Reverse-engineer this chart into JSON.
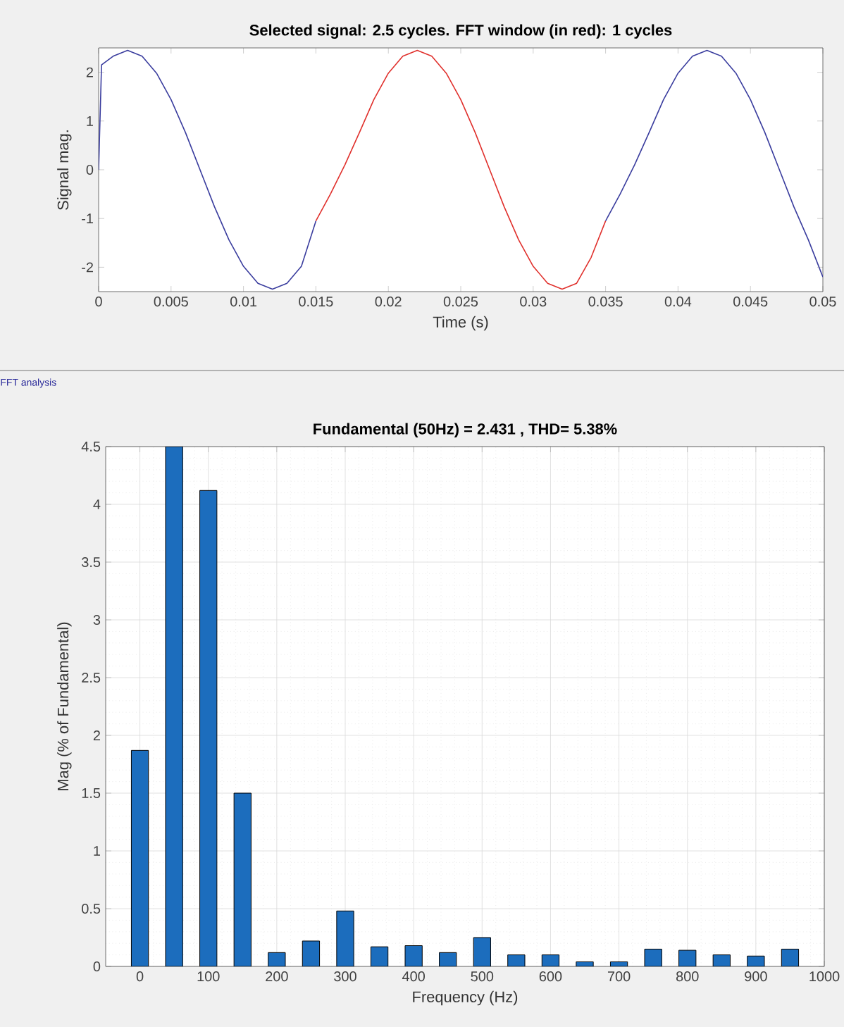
{
  "chart_data": [
    {
      "type": "line",
      "title": "Selected signal: 2.5 cycles. FFT window (in red): 1 cycles",
      "xlabel": "Time (s)",
      "ylabel": "Signal mag.",
      "xlim": [
        0,
        0.05
      ],
      "ylim": [
        -2.5,
        2.5
      ],
      "xticks": [
        0,
        0.005,
        0.01,
        0.015,
        0.02,
        0.025,
        0.03,
        0.035,
        0.04,
        0.045,
        0.05
      ],
      "yticks": [
        -2,
        -1,
        0,
        1,
        2
      ],
      "series": [
        {
          "color": "#3a3d9e",
          "x": [
            0,
            0.0002,
            0.001,
            0.002,
            0.003,
            0.004,
            0.005,
            0.006,
            0.007,
            0.008,
            0.009,
            0.01,
            0.011,
            0.012,
            0.013,
            0.014,
            0.015
          ],
          "values": [
            0,
            2.15,
            2.33,
            2.45,
            2.33,
            1.98,
            1.44,
            0.76,
            0,
            -0.76,
            -1.44,
            -1.98,
            -2.33,
            -2.45,
            -2.33,
            -1.98,
            -1.05
          ]
        },
        {
          "color": "#e0302c",
          "x": [
            0.015,
            0.016,
            0.017,
            0.018,
            0.019,
            0.02,
            0.021,
            0.022,
            0.023,
            0.024,
            0.025,
            0.026,
            0.027,
            0.028,
            0.029,
            0.03,
            0.031,
            0.032,
            0.033,
            0.034,
            0.035
          ],
          "values": [
            -1.05,
            -0.5,
            0.1,
            0.76,
            1.44,
            1.98,
            2.33,
            2.45,
            2.33,
            1.98,
            1.44,
            0.76,
            0,
            -0.76,
            -1.44,
            -1.98,
            -2.33,
            -2.45,
            -2.33,
            -1.8,
            -1.05
          ]
        },
        {
          "color": "#3a3d9e",
          "x": [
            0.035,
            0.036,
            0.037,
            0.038,
            0.039,
            0.04,
            0.041,
            0.042,
            0.043,
            0.044,
            0.045,
            0.046,
            0.047,
            0.048,
            0.049,
            0.05
          ],
          "values": [
            -1.05,
            -0.5,
            0.1,
            0.76,
            1.44,
            1.98,
            2.33,
            2.45,
            2.33,
            1.98,
            1.44,
            0.76,
            0,
            -0.76,
            -1.44,
            -2.2
          ]
        }
      ]
    },
    {
      "type": "bar",
      "title": "Fundamental (50Hz) = 2.431 , THD= 5.38%",
      "xlabel": "Frequency (Hz)",
      "ylabel": "Mag (% of Fundamental)",
      "annotations": [
        "FFT analysis"
      ],
      "x": [
        0,
        50,
        100,
        150,
        200,
        250,
        300,
        350,
        400,
        450,
        500,
        550,
        600,
        650,
        700,
        750,
        800,
        850,
        900,
        950
      ],
      "values": [
        1.87,
        4.5,
        4.12,
        1.5,
        0.12,
        0.22,
        0.48,
        0.17,
        0.18,
        0.12,
        0.25,
        0.1,
        0.1,
        0.04,
        0.04,
        0.15,
        0.14,
        0.1,
        0.09,
        0.15
      ],
      "color": "#1c6dbd",
      "xlim": [
        -50,
        1000
      ],
      "ylim": [
        0,
        4.5
      ],
      "xticks": [
        0,
        100,
        200,
        300,
        400,
        500,
        600,
        700,
        800,
        900,
        1000
      ],
      "yticks": [
        0,
        0.5,
        1,
        1.5,
        2,
        2.5,
        3,
        3.5,
        4,
        4.5
      ],
      "grid": true
    }
  ]
}
